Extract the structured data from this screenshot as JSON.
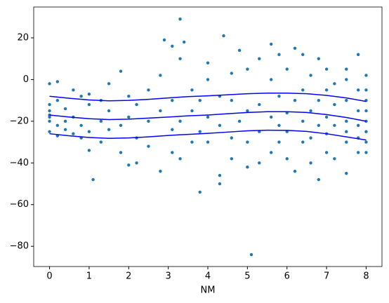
{
  "chart_data": {
    "type": "scatter",
    "xlabel": "NM",
    "xlim": [
      -0.4,
      8.4
    ],
    "ylim": [
      -89.7,
      34.8
    ],
    "xticks": [
      0,
      1,
      2,
      3,
      4,
      5,
      6,
      7,
      8
    ],
    "yticks": [
      {
        "value": -80,
        "label": "−80"
      },
      {
        "value": -60,
        "label": "−60"
      },
      {
        "value": -40,
        "label": "−40"
      },
      {
        "value": -20,
        "label": "−20"
      },
      0,
      20
    ],
    "series": [
      {
        "kind": "scatter",
        "color": "#1f77b4",
        "x": [
          0,
          0,
          0,
          0,
          0,
          0,
          0,
          0.2,
          0.2,
          0.2,
          0.2,
          0.4,
          0.4,
          0.4,
          0.6,
          0.6,
          0.6,
          0.8,
          0.8,
          0.8,
          1,
          1,
          1,
          1,
          1.1,
          1.3,
          1.3,
          1.3,
          1.5,
          1.5,
          1.5,
          1.8,
          1.8,
          1.8,
          2,
          2,
          2,
          2.2,
          2.2,
          2.2,
          2.5,
          2.5,
          2.5,
          2.8,
          2.8,
          2.8,
          2.9,
          3.1,
          3.1,
          3.1,
          3.1,
          3.3,
          3.3,
          3.3,
          3.3,
          3.4,
          3.6,
          3.6,
          3.6,
          3.8,
          3.8,
          3.8,
          4,
          4,
          4,
          4,
          4.3,
          4.3,
          4.3,
          4.3,
          4.4,
          4.6,
          4.6,
          4.6,
          4.6,
          4.8,
          4.8,
          5,
          5,
          5,
          5,
          5.1,
          5.3,
          5.3,
          5.3,
          5.3,
          5.6,
          5.6,
          5.6,
          5.6,
          5.8,
          5.8,
          5.8,
          5.8,
          6,
          6,
          6,
          6,
          6.2,
          6.2,
          6.2,
          6.4,
          6.4,
          6.4,
          6.4,
          6.6,
          6.6,
          6.6,
          6.6,
          6.8,
          6.8,
          6.8,
          6.8,
          7,
          7,
          7,
          7,
          7,
          7.2,
          7.2,
          7.2,
          7.2,
          7.5,
          7.5,
          7.5,
          7.5,
          7.5,
          7.5,
          7.5,
          7.8,
          7.8,
          7.8,
          7.8,
          7.8,
          7.8,
          8,
          8,
          8,
          8,
          8,
          8,
          8,
          8
        ],
        "values": [
          -2,
          -15,
          -18,
          -20,
          -25,
          -12,
          -17,
          -1,
          -22,
          -27,
          -10,
          -20,
          -14,
          -24,
          -5,
          -18,
          -26,
          -8,
          -22,
          -28,
          -12,
          -34,
          -7,
          -25,
          -48,
          -10,
          -20,
          -30,
          -15,
          -24,
          -2,
          4,
          -22,
          -35,
          -41,
          -18,
          -8,
          -28,
          -12,
          -40,
          -5,
          -20,
          -32,
          -44,
          -15,
          2,
          19,
          16,
          -35,
          -10,
          -24,
          29,
          10,
          -20,
          -38,
          18,
          -30,
          -5,
          -15,
          -54,
          -25,
          -10,
          8,
          -30,
          -18,
          0,
          -50,
          -46,
          -22,
          -8,
          21,
          -10,
          -28,
          3,
          -38,
          14,
          -20,
          -42,
          -15,
          5,
          -30,
          -84,
          -40,
          -12,
          10,
          -25,
          17,
          -35,
          -18,
          0,
          -30,
          -8,
          12,
          -22,
          -38,
          -16,
          5,
          -25,
          15,
          -44,
          -10,
          12,
          -30,
          -20,
          -5,
          -40,
          -15,
          2,
          -28,
          -48,
          -22,
          10,
          -10,
          -35,
          -18,
          -5,
          -26,
          5,
          -38,
          -12,
          -22,
          -2,
          -45,
          -30,
          -20,
          -10,
          0,
          5,
          -25,
          12,
          -35,
          -15,
          -28,
          -5,
          -22,
          -30,
          -20,
          -10,
          -25,
          -15,
          2,
          -35,
          -5
        ]
      },
      {
        "kind": "line",
        "color": "blue",
        "x": [
          0,
          0.5,
          1,
          1.5,
          2,
          2.5,
          3,
          3.5,
          4,
          4.5,
          5,
          5.5,
          6,
          6.5,
          7,
          7.5,
          8
        ],
        "values": [
          -8,
          -9,
          -9.8,
          -10.2,
          -10,
          -9.5,
          -8.8,
          -8.2,
          -7.8,
          -7.3,
          -6.8,
          -6.5,
          -6.5,
          -6.8,
          -7.6,
          -8.8,
          -10.5
        ]
      },
      {
        "kind": "line",
        "color": "blue",
        "x": [
          0,
          0.5,
          1,
          1.5,
          2,
          2.5,
          3,
          3.5,
          4,
          4.5,
          5,
          5.5,
          6,
          6.5,
          7,
          7.5,
          8
        ],
        "values": [
          -17,
          -18,
          -18.8,
          -19.2,
          -19,
          -18.5,
          -18,
          -17.4,
          -17,
          -16.4,
          -15.8,
          -15.4,
          -15.4,
          -15.8,
          -16.8,
          -18.2,
          -20
        ]
      },
      {
        "kind": "line",
        "color": "blue",
        "x": [
          0,
          0.5,
          1,
          1.5,
          2,
          2.5,
          3,
          3.5,
          4,
          4.5,
          5,
          5.5,
          6,
          6.5,
          7,
          7.5,
          8
        ],
        "values": [
          -26,
          -27,
          -27.8,
          -28.2,
          -28,
          -27.5,
          -26.8,
          -26.3,
          -25.8,
          -25.2,
          -24.6,
          -24.3,
          -24.4,
          -24.9,
          -26,
          -27.5,
          -29
        ]
      }
    ]
  }
}
